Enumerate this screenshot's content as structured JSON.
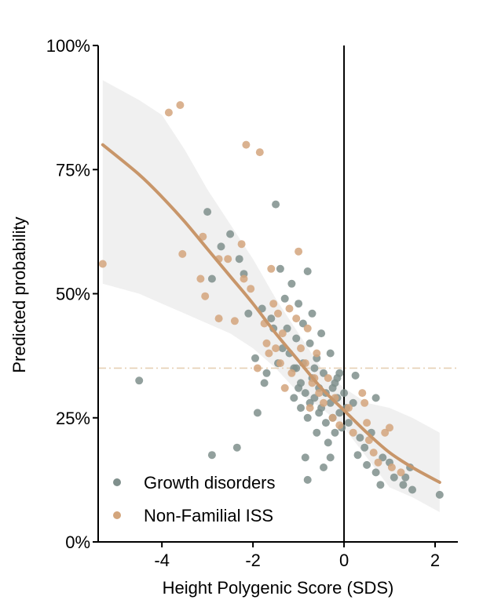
{
  "chart_data": {
    "type": "scatter",
    "title": "",
    "xlabel": "Height Polygenic Score (SDS)",
    "ylabel": "Predicted probability",
    "xlim": [
      -5.4,
      2.5
    ],
    "ylim": [
      0,
      100
    ],
    "x_ticks": [
      -4,
      -2,
      0,
      2
    ],
    "x_tick_labels": [
      "-4",
      "-2",
      "0",
      "2"
    ],
    "y_ticks": [
      0,
      25,
      50,
      75,
      100
    ],
    "y_tick_labels": [
      "0%",
      "25%",
      "50%",
      "75%",
      "100%"
    ],
    "grid": false,
    "legend_position": "bottom-left",
    "reference_lines": [
      {
        "type": "vertical",
        "x": 0,
        "style": "solid",
        "color": "#000000"
      },
      {
        "type": "horizontal",
        "y": 35,
        "style": "dash-dot",
        "color": "#e6cfb4"
      }
    ],
    "fit_curve": {
      "name": "logistic fit",
      "color": "#c8966a",
      "x": [
        -5.3,
        -4.5,
        -4.0,
        -3.5,
        -3.0,
        -2.5,
        -2.0,
        -1.5,
        -1.0,
        -0.5,
        0.0,
        0.5,
        1.0,
        1.5,
        2.1
      ],
      "y": [
        80,
        74,
        69.5,
        64.5,
        59,
        53.5,
        48,
        42,
        36.5,
        31,
        26.5,
        22,
        18,
        15,
        12
      ]
    },
    "confidence_band": {
      "color": "#f0f0f0",
      "x": [
        -5.3,
        -4.5,
        -4.0,
        -3.5,
        -3.0,
        -2.5,
        -2.0,
        -1.5,
        -1.0,
        -0.5,
        0.0,
        0.5,
        1.0,
        1.5,
        2.1
      ],
      "upper": [
        93,
        89,
        86,
        79,
        71,
        64,
        57,
        49,
        42,
        35,
        31,
        28,
        27,
        25,
        22
      ],
      "lower": [
        52,
        50,
        48,
        46,
        44,
        42,
        39,
        35,
        30,
        27,
        23,
        17,
        11,
        9,
        6
      ]
    },
    "series": [
      {
        "name": "Growth disorders",
        "color": "#7f8f8c",
        "points": [
          [
            -4.5,
            32.5
          ],
          [
            -3.0,
            66.5
          ],
          [
            -2.9,
            17.5
          ],
          [
            -2.9,
            53
          ],
          [
            -2.7,
            59.5
          ],
          [
            -2.5,
            62
          ],
          [
            -2.3,
            57
          ],
          [
            -2.2,
            54
          ],
          [
            -2.35,
            19
          ],
          [
            -2.1,
            46
          ],
          [
            -1.95,
            37
          ],
          [
            -1.9,
            26
          ],
          [
            -1.8,
            47
          ],
          [
            -1.75,
            32
          ],
          [
            -1.6,
            45
          ],
          [
            -1.5,
            68
          ],
          [
            -1.4,
            55
          ],
          [
            -1.3,
            49
          ],
          [
            -1.25,
            43
          ],
          [
            -1.2,
            38
          ],
          [
            -1.15,
            52
          ],
          [
            -1.1,
            35
          ],
          [
            -1.05,
            41
          ],
          [
            -1.0,
            31
          ],
          [
            -1.0,
            48
          ],
          [
            -0.95,
            27
          ],
          [
            -0.9,
            44
          ],
          [
            -0.9,
            36
          ],
          [
            -0.85,
            30
          ],
          [
            -0.8,
            54.5
          ],
          [
            -0.8,
            25
          ],
          [
            -0.75,
            40
          ],
          [
            -0.7,
            33
          ],
          [
            -0.7,
            46
          ],
          [
            -0.65,
            29
          ],
          [
            -0.6,
            22
          ],
          [
            -0.6,
            37
          ],
          [
            -0.55,
            31
          ],
          [
            -0.5,
            27
          ],
          [
            -0.5,
            42
          ],
          [
            -0.45,
            34
          ],
          [
            -0.4,
            24
          ],
          [
            -0.4,
            30
          ],
          [
            -0.35,
            20
          ],
          [
            -0.3,
            28
          ],
          [
            -0.3,
            38
          ],
          [
            -0.25,
            25
          ],
          [
            -0.2,
            32
          ],
          [
            -0.2,
            22
          ],
          [
            -0.15,
            29
          ],
          [
            -0.1,
            26
          ],
          [
            -0.1,
            34
          ],
          [
            -0.05,
            23
          ],
          [
            0.0,
            30
          ],
          [
            0.05,
            27
          ],
          [
            0.1,
            24
          ],
          [
            -0.8,
            12.5
          ],
          [
            -0.85,
            17
          ],
          [
            -0.45,
            15
          ],
          [
            -0.3,
            17
          ],
          [
            -1.7,
            34
          ],
          [
            -1.35,
            39
          ],
          [
            -1.55,
            43
          ],
          [
            -1.45,
            36
          ],
          [
            -1.05,
            35
          ],
          [
            -1.1,
            29
          ],
          [
            -0.95,
            32
          ],
          [
            -0.75,
            28
          ],
          [
            -0.65,
            35
          ],
          [
            -0.55,
            26
          ],
          [
            -0.25,
            31
          ],
          [
            -0.15,
            33
          ],
          [
            0.25,
            33.5
          ],
          [
            0.2,
            28
          ],
          [
            0.3,
            17.5
          ],
          [
            0.35,
            21
          ],
          [
            0.45,
            19
          ],
          [
            0.5,
            15.5
          ],
          [
            0.6,
            22
          ],
          [
            0.7,
            14
          ],
          [
            0.8,
            11.5
          ],
          [
            0.85,
            17
          ],
          [
            1.0,
            16
          ],
          [
            1.1,
            13
          ],
          [
            1.3,
            11.5
          ],
          [
            1.35,
            13
          ],
          [
            1.5,
            10.5
          ],
          [
            1.45,
            15
          ],
          [
            2.1,
            9.5
          ],
          [
            0.7,
            29
          ]
        ]
      },
      {
        "name": "Non-Familial ISS",
        "color": "#d3a57c",
        "points": [
          [
            -5.3,
            56
          ],
          [
            -3.85,
            86.5
          ],
          [
            -3.6,
            88
          ],
          [
            -3.55,
            58
          ],
          [
            -3.1,
            61.5
          ],
          [
            -3.15,
            53
          ],
          [
            -3.05,
            49.5
          ],
          [
            -2.75,
            45
          ],
          [
            -2.75,
            57
          ],
          [
            -2.55,
            57
          ],
          [
            -2.4,
            44.5
          ],
          [
            -2.25,
            60
          ],
          [
            -2.2,
            53
          ],
          [
            -2.15,
            80
          ],
          [
            -2.05,
            51
          ],
          [
            -1.85,
            78.5
          ],
          [
            -1.75,
            44
          ],
          [
            -1.7,
            40
          ],
          [
            -1.6,
            55
          ],
          [
            -1.5,
            39
          ],
          [
            -1.45,
            46
          ],
          [
            -1.4,
            36
          ],
          [
            -1.35,
            42
          ],
          [
            -1.2,
            47
          ],
          [
            -1.0,
            58.5
          ],
          [
            -0.95,
            39
          ],
          [
            -0.85,
            36
          ],
          [
            -0.8,
            43
          ],
          [
            -0.7,
            32
          ],
          [
            -0.6,
            38
          ],
          [
            -0.55,
            30
          ],
          [
            -0.45,
            28
          ],
          [
            -0.35,
            33
          ],
          [
            -0.25,
            25
          ],
          [
            -0.2,
            29
          ],
          [
            -0.1,
            23.5
          ],
          [
            0.1,
            27
          ],
          [
            0.2,
            22
          ],
          [
            0.4,
            30
          ],
          [
            0.45,
            28
          ],
          [
            0.5,
            24
          ],
          [
            0.55,
            20.5
          ],
          [
            0.65,
            18
          ],
          [
            0.75,
            16
          ],
          [
            0.9,
            22
          ],
          [
            1.0,
            23
          ],
          [
            1.05,
            15
          ],
          [
            1.25,
            14
          ],
          [
            -1.9,
            35
          ],
          [
            -1.65,
            38
          ],
          [
            -1.55,
            48
          ],
          [
            -1.3,
            31
          ],
          [
            -1.15,
            34
          ],
          [
            -1.05,
            45
          ],
          [
            -0.75,
            27
          ],
          [
            -0.65,
            33
          ]
        ]
      }
    ]
  }
}
